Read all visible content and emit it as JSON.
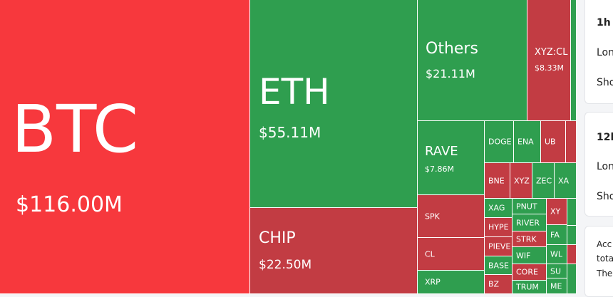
{
  "treemap": {
    "tiles": [
      {
        "label": "BTC",
        "value": "$116.00M"
      },
      {
        "label": "ETH",
        "value": "$55.11M"
      },
      {
        "label": "CHIP",
        "value": "$22.50M"
      },
      {
        "label": "Others",
        "value": "$21.11M"
      },
      {
        "label": "XYZ:CL",
        "value": "$8.33M"
      },
      {
        "label": "RAVE",
        "value": "$7.86M"
      },
      {
        "label": "SPK"
      },
      {
        "label": "CL"
      },
      {
        "label": "XRP"
      },
      {
        "label": "DOGE"
      },
      {
        "label": "ENA"
      },
      {
        "label": "UB"
      },
      {
        "label": "BNE"
      },
      {
        "label": "XYZ"
      },
      {
        "label": "ZEC"
      },
      {
        "label": "XA"
      },
      {
        "label": "XAG"
      },
      {
        "label": "HYPE"
      },
      {
        "label": "PIEVE"
      },
      {
        "label": "BASE"
      },
      {
        "label": "BZ"
      },
      {
        "label": "PNUT"
      },
      {
        "label": "RIVER"
      },
      {
        "label": "STRK"
      },
      {
        "label": "WIF"
      },
      {
        "label": "CORE"
      },
      {
        "label": "TRUM"
      },
      {
        "label": "XY"
      },
      {
        "label": "FA"
      },
      {
        "label": "WL"
      },
      {
        "label": "SU"
      },
      {
        "label": "ME"
      }
    ]
  },
  "panel": {
    "cards": [
      {
        "title": "1h",
        "lines": [
          "Lon",
          "Sho"
        ]
      },
      {
        "title": "12h",
        "lines": [
          "Lon",
          "Sho"
        ]
      },
      {
        "lines": [
          "Acc",
          "tota",
          "The"
        ]
      }
    ]
  }
}
